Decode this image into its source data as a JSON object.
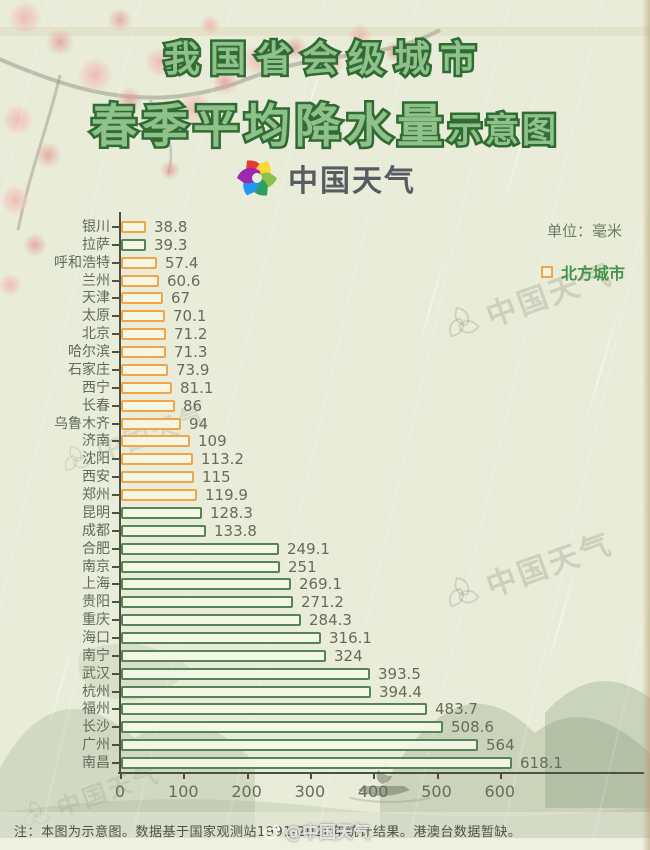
{
  "title": {
    "line1": "我国省会级城市",
    "line2_main": "春季平均降水量",
    "line2_suffix": "示意图"
  },
  "logo": {
    "text": "中国天气"
  },
  "legend": {
    "unit_label": "单位：毫米",
    "items": [
      {
        "label": "北方城市",
        "color": "#f2a449",
        "group": "north"
      }
    ]
  },
  "chart_data": {
    "type": "bar",
    "orientation": "horizontal",
    "title": "我国省会级城市春季平均降水量示意图",
    "unit": "毫米",
    "xlim": [
      0,
      650
    ],
    "x_ticks": [
      0,
      100,
      200,
      300,
      400,
      500,
      600
    ],
    "grid": false,
    "colors": {
      "north": "#f2a449",
      "south": "#558457"
    },
    "cities": [
      {
        "name": "银川",
        "value": 38.8,
        "label": "38.8",
        "group": "north"
      },
      {
        "name": "拉萨",
        "value": 39.3,
        "label": "39.3",
        "group": "south"
      },
      {
        "name": "呼和浩特",
        "value": 57.4,
        "label": "57.4",
        "group": "north"
      },
      {
        "name": "兰州",
        "value": 60.6,
        "label": "60.6",
        "group": "north"
      },
      {
        "name": "天津",
        "value": 67,
        "label": "67",
        "group": "north"
      },
      {
        "name": "太原",
        "value": 70.1,
        "label": "70.1",
        "group": "north"
      },
      {
        "name": "北京",
        "value": 71.2,
        "label": "71.2",
        "group": "north"
      },
      {
        "name": "哈尔滨",
        "value": 71.3,
        "label": "71.3",
        "group": "north"
      },
      {
        "name": "石家庄",
        "value": 73.9,
        "label": "73.9",
        "group": "north"
      },
      {
        "name": "西宁",
        "value": 81.1,
        "label": "81.1",
        "group": "north"
      },
      {
        "name": "长春",
        "value": 86,
        "label": "86",
        "group": "north"
      },
      {
        "name": "乌鲁木齐",
        "value": 94,
        "label": "94",
        "group": "north"
      },
      {
        "name": "济南",
        "value": 109,
        "label": "109",
        "group": "north"
      },
      {
        "name": "沈阳",
        "value": 113.2,
        "label": "113.2",
        "group": "north"
      },
      {
        "name": "西安",
        "value": 115,
        "label": "115",
        "group": "north"
      },
      {
        "name": "郑州",
        "value": 119.9,
        "label": "119.9",
        "group": "north"
      },
      {
        "name": "昆明",
        "value": 128.3,
        "label": "128.3",
        "group": "south"
      },
      {
        "name": "成都",
        "value": 133.8,
        "label": "133.8",
        "group": "south"
      },
      {
        "name": "合肥",
        "value": 249.1,
        "label": "249.1",
        "group": "south"
      },
      {
        "name": "南京",
        "value": 251,
        "label": "251",
        "group": "south"
      },
      {
        "name": "上海",
        "value": 269.1,
        "label": "269.1",
        "group": "south"
      },
      {
        "name": "贵阳",
        "value": 271.2,
        "label": "271.2",
        "group": "south"
      },
      {
        "name": "重庆",
        "value": 284.3,
        "label": "284.3",
        "group": "south"
      },
      {
        "name": "海口",
        "value": 316.1,
        "label": "316.1",
        "group": "south"
      },
      {
        "name": "南宁",
        "value": 324,
        "label": "324",
        "group": "south"
      },
      {
        "name": "武汉",
        "value": 393.5,
        "label": "393.5",
        "group": "south"
      },
      {
        "name": "杭州",
        "value": 394.4,
        "label": "394.4",
        "group": "south"
      },
      {
        "name": "福州",
        "value": 483.7,
        "label": "483.7",
        "group": "south"
      },
      {
        "name": "长沙",
        "value": 508.6,
        "label": "508.6",
        "group": "south"
      },
      {
        "name": "广州",
        "value": 564,
        "label": "564",
        "group": "south"
      },
      {
        "name": "南昌",
        "value": 618.1,
        "label": "618.1",
        "group": "south"
      }
    ]
  },
  "footer": {
    "note": "注：本图为示意图。数据基于国家观测站1991-2020年统计结果。港澳台数据暂缺。",
    "watermark": "@中国天气"
  },
  "watermark_text": "中国天气"
}
